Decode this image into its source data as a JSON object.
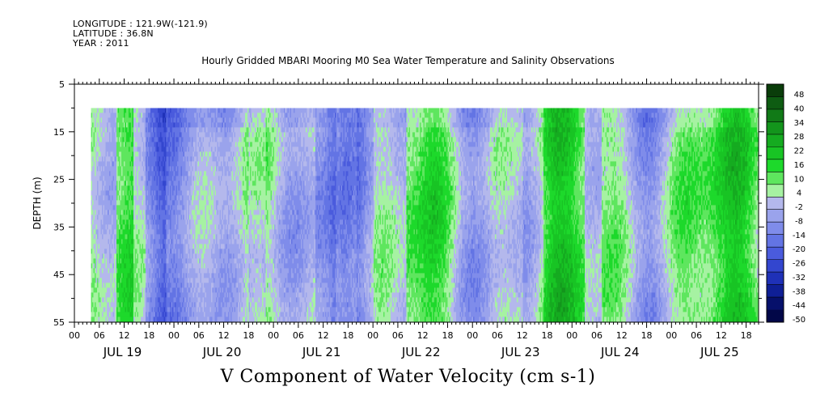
{
  "header": {
    "longitude": "LONGITUDE : 121.9W(-121.9)",
    "latitude": "LATITUDE : 36.8N",
    "year": "YEAR : 2011",
    "title": "Hourly Gridded MBARI Mooring M0 Sea Water Temperature and Salinity Observations"
  },
  "chart_data": {
    "type": "heatmap",
    "title": "Hourly Gridded MBARI Mooring M0 Sea Water Temperature and Salinity Observations",
    "xlabel": "V Component of Water Velocity (cm s-1)",
    "ylabel": "DEPTH (m)",
    "x_range_hours": [
      0,
      165
    ],
    "x_hour_ticks": [
      "00",
      "06",
      "12",
      "18",
      "00",
      "06",
      "12",
      "18",
      "00",
      "06",
      "12",
      "18",
      "00",
      "06",
      "12",
      "18",
      "00",
      "06",
      "12",
      "18",
      "00",
      "06",
      "12",
      "18",
      "00",
      "06",
      "12",
      "18"
    ],
    "x_day_labels": [
      "JUL 19",
      "JUL 20",
      "JUL 21",
      "JUL 22",
      "JUL 23",
      "JUL 24",
      "JUL 25"
    ],
    "y_range": [
      5,
      55
    ],
    "y_ticks": [
      5,
      15,
      25,
      35,
      45,
      55
    ],
    "y_inverted": true,
    "data_depth_range": [
      10,
      55
    ],
    "data_time_range_hours": [
      4,
      165
    ],
    "colorbar": {
      "levels": [
        "48",
        "40",
        "34",
        "28",
        "22",
        "16",
        "10",
        "4",
        "-2",
        "-8",
        "-14",
        "-20",
        "-26",
        "-32",
        "-38",
        "-44",
        "-50"
      ],
      "colors": [
        "#0a3d0a",
        "#0e5c12",
        "#117a17",
        "#13951c",
        "#15ab20",
        "#18c424",
        "#1dd92b",
        "#5ee65e",
        "#a6f2a2",
        "#b4b8ec",
        "#9aa3ec",
        "#7f8cea",
        "#6374e4",
        "#4a5bdd",
        "#3346cf",
        "#1f31b8",
        "#0f1f96",
        "#06106b",
        "#020748"
      ]
    }
  }
}
